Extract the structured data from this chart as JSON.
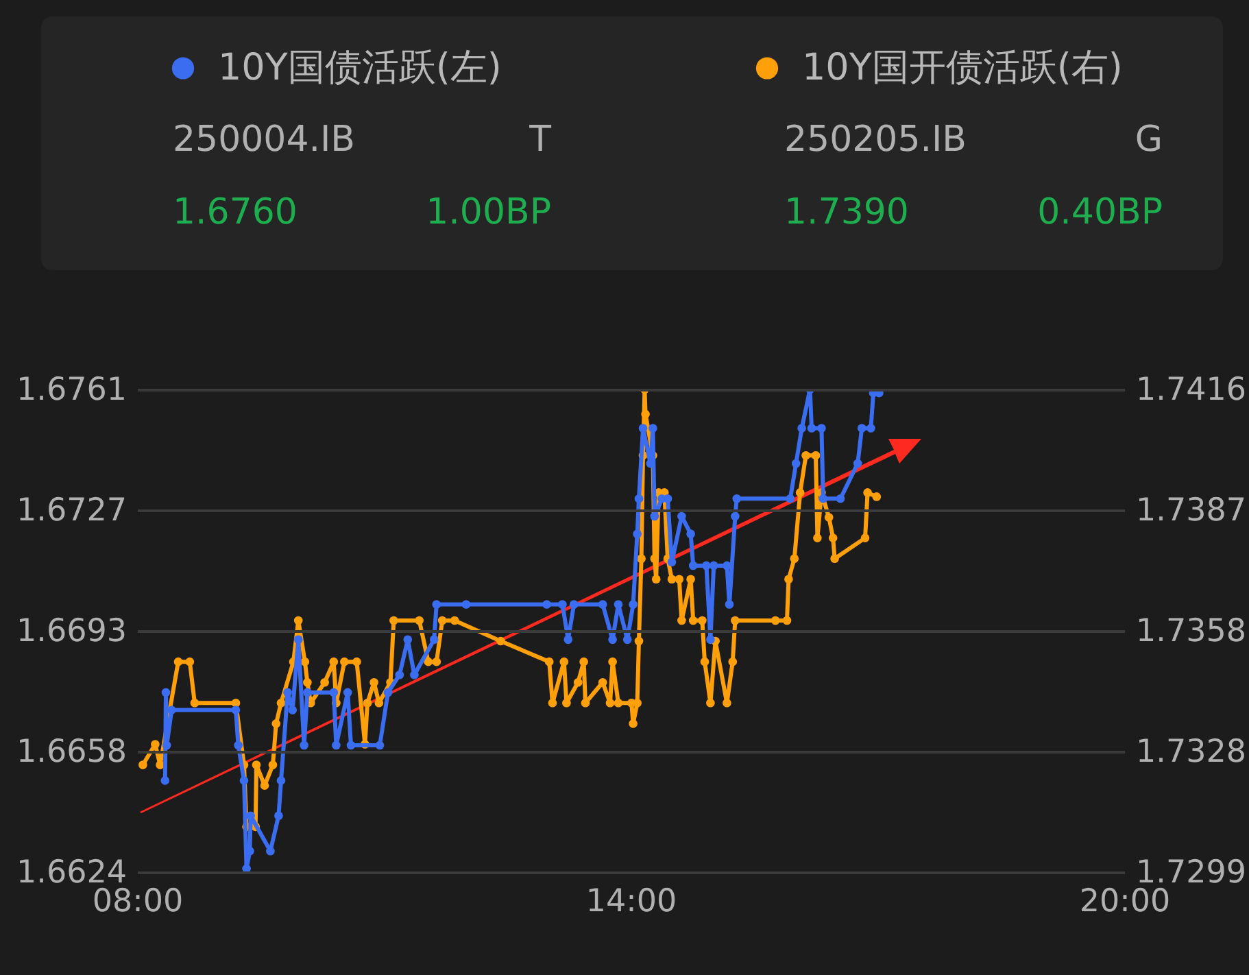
{
  "chart_data": {
    "type": "line",
    "marker": "circle",
    "grid": "y",
    "legend": "top",
    "annotations": [
      "250004.IB",
      "T",
      "1.6760",
      "1.00BP",
      "250205.IB",
      "G",
      "1.7390",
      "0.40BP"
    ],
    "xlim": [
      8,
      20
    ],
    "xticks": [
      {
        "value": 8,
        "label": "08:00"
      },
      {
        "value": 14,
        "label": "14:00"
      },
      {
        "value": 20,
        "label": "20:00"
      }
    ],
    "ylim": [
      1.6624,
      1.6761
    ],
    "yticks": [
      1.6624,
      {
        "value": 1.665825,
        "label": "1.6658"
      },
      {
        "value": 1.66925,
        "label": "1.6693"
      },
      {
        "value": 1.672675,
        "label": "1.6727"
      },
      1.6761
    ],
    "y2lim": [
      1.7299,
      1.7416
    ],
    "y2ticks": [
      1.7299,
      {
        "value": 1.732825,
        "label": "1.7328"
      },
      {
        "value": 1.73575,
        "label": "1.7358"
      },
      {
        "value": 1.738675,
        "label": "1.7387"
      },
      1.7416
    ],
    "series": [
      {
        "name": "10Y国债活跃(左)",
        "color": "#3a6df0",
        "x": [
          8.34,
          8.35,
          8.36,
          8.42,
          9.2,
          9.23,
          9.3,
          9.33,
          9.37,
          9.38,
          9.62,
          9.72,
          9.75,
          9.83,
          9.89,
          9.96,
          10.03,
          10.07,
          10.39,
          10.42,
          10.56,
          10.6,
          10.95,
          11.05,
          11.19,
          11.29,
          11.37,
          11.61,
          11.64,
          12.0,
          12.98,
          13.17,
          13.24,
          13.31,
          13.66,
          13.78,
          13.85,
          13.96,
          14.03,
          14.08,
          14.1,
          14.15,
          14.24,
          14.27,
          14.29,
          14.38,
          14.45,
          14.5,
          14.62,
          14.73,
          14.76,
          14.92,
          14.97,
          15.01,
          15.17,
          15.2,
          15.27,
          15.29,
          15.94,
          16.01,
          16.08,
          16.18,
          16.2,
          16.32,
          16.34,
          16.55,
          16.76,
          16.81,
          16.92,
          16.95,
          17.02
        ],
        "values": [
          1.665,
          1.6675,
          1.666,
          1.667,
          1.667,
          1.666,
          1.665,
          1.6625,
          1.663,
          1.664,
          1.663,
          1.664,
          1.665,
          1.6675,
          1.667,
          1.669,
          1.666,
          1.6675,
          1.6675,
          1.666,
          1.6675,
          1.666,
          1.666,
          1.6675,
          1.668,
          1.669,
          1.668,
          1.669,
          1.67,
          1.67,
          1.67,
          1.67,
          1.669,
          1.67,
          1.67,
          1.669,
          1.67,
          1.669,
          1.67,
          1.672,
          1.673,
          1.675,
          1.674,
          1.675,
          1.6725,
          1.673,
          1.673,
          1.6712,
          1.6725,
          1.672,
          1.6711,
          1.6711,
          1.669,
          1.6711,
          1.6711,
          1.67,
          1.6725,
          1.673,
          1.673,
          1.674,
          1.675,
          1.6761,
          1.675,
          1.675,
          1.673,
          1.673,
          1.674,
          1.675,
          1.675,
          1.676,
          1.676
        ]
      },
      {
        "name": "10Y国开债活跃(右)",
        "color": "#ff9f0a",
        "axis": "y2",
        "x": [
          8.07,
          8.22,
          8.28,
          8.5,
          8.64,
          8.7,
          9.2,
          9.3,
          9.33,
          9.44,
          9.45,
          9.55,
          9.65,
          9.69,
          9.75,
          9.9,
          9.96,
          10.04,
          10.07,
          10.11,
          10.28,
          10.39,
          10.42,
          10.52,
          10.67,
          10.77,
          10.8,
          10.88,
          10.94,
          11.08,
          11.12,
          11.43,
          11.54,
          11.64,
          11.71,
          11.86,
          12.42,
          13.01,
          13.05,
          13.19,
          13.22,
          13.36,
          13.43,
          13.45,
          13.66,
          13.75,
          13.78,
          13.85,
          14.01,
          14.03,
          14.08,
          14.1,
          14.13,
          14.15,
          14.17,
          14.18,
          14.27,
          14.29,
          14.31,
          14.34,
          14.41,
          14.45,
          14.5,
          14.59,
          14.62,
          14.73,
          14.76,
          14.87,
          14.9,
          14.97,
          15.03,
          15.17,
          15.24,
          15.27,
          15.76,
          15.9,
          15.92,
          15.99,
          16.06,
          16.13,
          16.25,
          16.27,
          16.32,
          16.41,
          16.46,
          16.48,
          16.85,
          16.88,
          16.99
        ],
        "values": [
          1.7325,
          1.733,
          1.7325,
          1.735,
          1.735,
          1.734,
          1.734,
          1.7325,
          1.731,
          1.731,
          1.7325,
          1.732,
          1.7325,
          1.7335,
          1.734,
          1.735,
          1.736,
          1.735,
          1.7345,
          1.734,
          1.7345,
          1.735,
          1.734,
          1.735,
          1.735,
          1.733,
          1.734,
          1.7345,
          1.734,
          1.7345,
          1.736,
          1.736,
          1.735,
          1.735,
          1.736,
          1.736,
          1.7355,
          1.735,
          1.734,
          1.735,
          1.734,
          1.7345,
          1.735,
          1.734,
          1.7345,
          1.734,
          1.735,
          1.734,
          1.734,
          1.7335,
          1.734,
          1.7355,
          1.7375,
          1.74,
          1.7416,
          1.741,
          1.74,
          1.7375,
          1.737,
          1.7391,
          1.7391,
          1.7375,
          1.737,
          1.737,
          1.736,
          1.737,
          1.736,
          1.736,
          1.735,
          1.734,
          1.7355,
          1.734,
          1.735,
          1.736,
          1.736,
          1.736,
          1.737,
          1.7375,
          1.7391,
          1.74,
          1.74,
          1.738,
          1.7391,
          1.7385,
          1.738,
          1.7375,
          1.738,
          1.7391,
          1.739
        ]
      }
    ]
  }
}
